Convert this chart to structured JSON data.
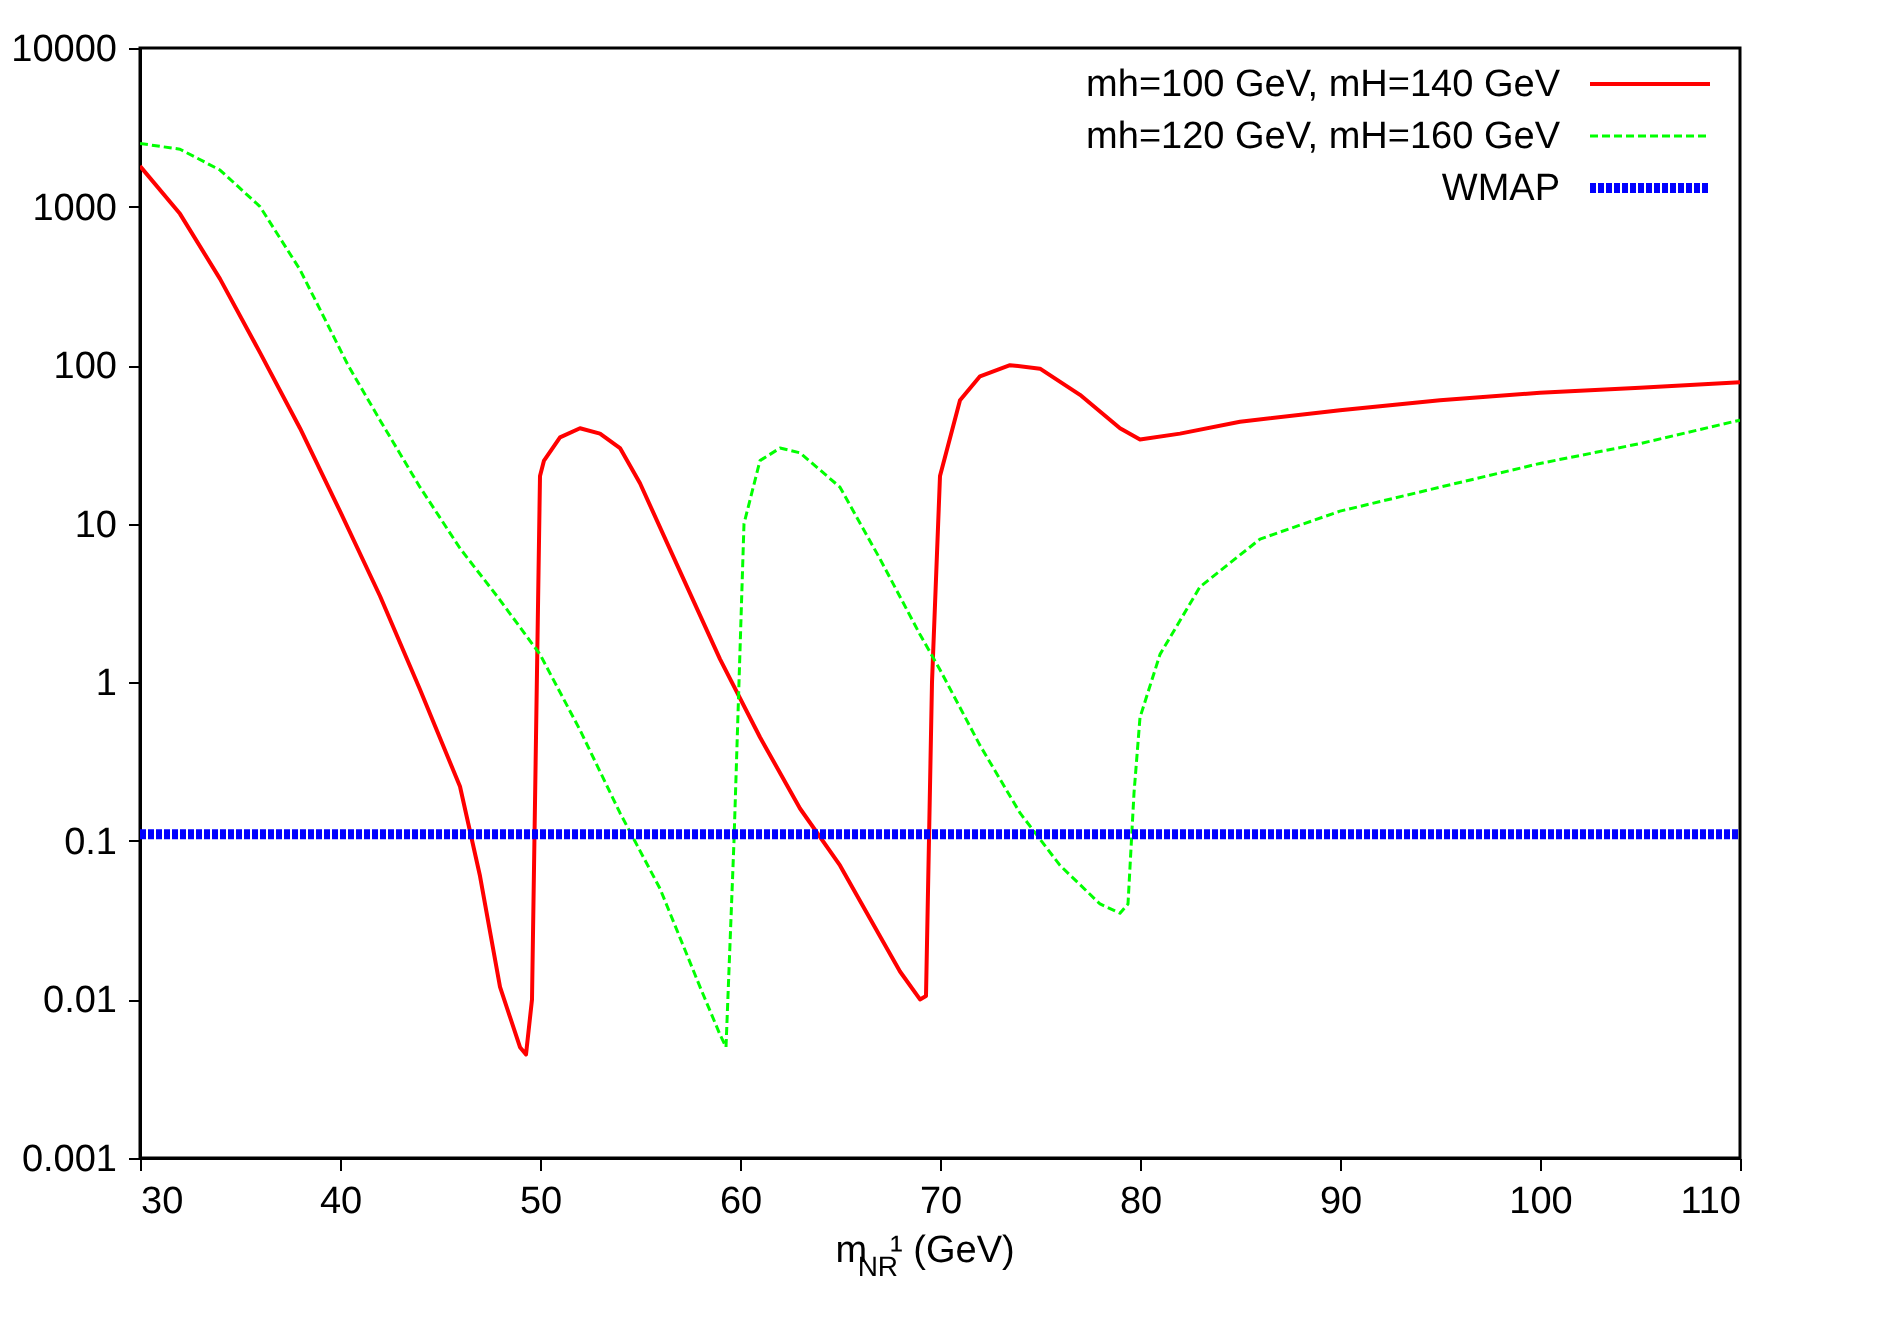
{
  "chart_data": {
    "type": "line",
    "xlabel": "m$_{NR}$¹ (GeV)",
    "log": "y",
    "grid": false,
    "legend": "top right",
    "marker": "none",
    "xlim": [
      30,
      110
    ],
    "xticks": [
      30,
      40,
      50,
      60,
      70,
      80,
      90,
      100,
      110
    ],
    "ylim": [
      0.001,
      10000
    ],
    "yticks": [
      0.001,
      0.01,
      0.1,
      1,
      10,
      100,
      1000,
      10000
    ],
    "series": [
      {
        "name": "mh=100 GeV, mH=140 GeV",
        "color": "#ff0000",
        "line_style": "solid",
        "x": [
          30,
          32,
          34,
          36,
          38,
          40,
          42,
          44,
          46,
          47,
          48,
          49,
          49.3,
          49.6,
          50,
          50.2,
          51,
          52,
          53,
          54,
          55,
          57,
          59,
          61,
          63,
          65,
          67,
          68,
          69,
          69.3,
          69.6,
          70,
          71,
          72,
          73.5,
          75,
          77,
          79,
          80,
          82,
          85,
          90,
          95,
          100,
          105,
          110
        ],
        "values": [
          1800,
          900,
          350,
          120,
          40,
          12,
          3.5,
          0.9,
          0.22,
          0.06,
          0.012,
          0.005,
          0.0045,
          0.01,
          20,
          25,
          35,
          40,
          37,
          30,
          18,
          5,
          1.4,
          0.45,
          0.16,
          0.07,
          0.025,
          0.015,
          0.01,
          0.0105,
          1,
          20,
          60,
          85,
          100,
          95,
          65,
          40,
          34,
          37,
          44,
          52,
          60,
          67,
          72,
          78
        ]
      },
      {
        "name": "mh=120 GeV, mH=160 GeV",
        "color": "#00ff00",
        "line_style": "dashed",
        "x": [
          30,
          32,
          34,
          36,
          38,
          40.4,
          42,
          44,
          46,
          48,
          50,
          52,
          54,
          56,
          58,
          59,
          59.3,
          59.7,
          60.2,
          61,
          62,
          63,
          65,
          67,
          69,
          70,
          72,
          74,
          76,
          78,
          79,
          79.4,
          79.7,
          80,
          81,
          83,
          86,
          90,
          95,
          100,
          105,
          110
        ],
        "values": [
          2500,
          2300,
          1700,
          1000,
          400,
          100,
          45,
          17,
          7,
          3.3,
          1.5,
          0.5,
          0.15,
          0.05,
          0.012,
          0.006,
          0.005,
          0.1,
          10,
          25,
          30,
          28,
          17,
          6,
          2,
          1.2,
          0.4,
          0.15,
          0.07,
          0.04,
          0.035,
          0.04,
          0.2,
          0.6,
          1.5,
          4,
          8,
          12,
          17,
          24,
          32,
          45
        ]
      },
      {
        "name": "WMAP",
        "color": "#0000ff",
        "line_style": "dotted",
        "x": [
          30,
          110
        ],
        "values": [
          0.11,
          0.11
        ]
      }
    ]
  }
}
